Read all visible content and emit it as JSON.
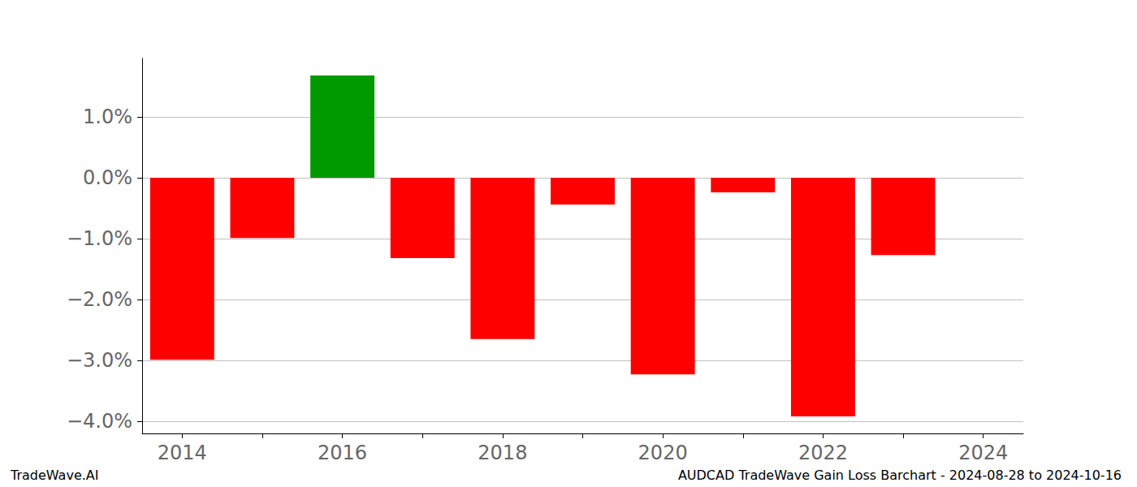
{
  "chart_data": {
    "type": "bar",
    "title": "AUDCAD TradeWave Gain Loss Barchart - 2024-08-28 to 2024-10-16",
    "annotations": [
      "TradeWave.AI"
    ],
    "categories": [
      "2014",
      null,
      "2016",
      null,
      "2018",
      null,
      "2020",
      null,
      "2022",
      null,
      "2024"
    ],
    "values": [
      -2.99,
      -0.99,
      1.68,
      -1.32,
      -2.65,
      -0.44,
      -3.23,
      -0.24,
      -3.92,
      -1.27,
      null
    ],
    "colors": [
      "#ff0000",
      "#ff0000",
      "#009900",
      "#ff0000",
      "#ff0000",
      "#ff0000",
      "#ff0000",
      "#ff0000",
      "#ff0000",
      "#ff0000",
      "#ff0000"
    ],
    "ylim": [
      -4.2,
      1.96
    ],
    "yticks": [
      {
        "value": -4,
        "label": "−4.0%"
      },
      {
        "value": -3,
        "label": "−3.0%"
      },
      {
        "value": -2,
        "label": "−2.0%"
      },
      {
        "value": -1,
        "label": "−1.0%"
      },
      {
        "value": 0,
        "label": "0.0%"
      },
      {
        "value": 1,
        "label": "1.0%"
      }
    ],
    "grid": true
  }
}
